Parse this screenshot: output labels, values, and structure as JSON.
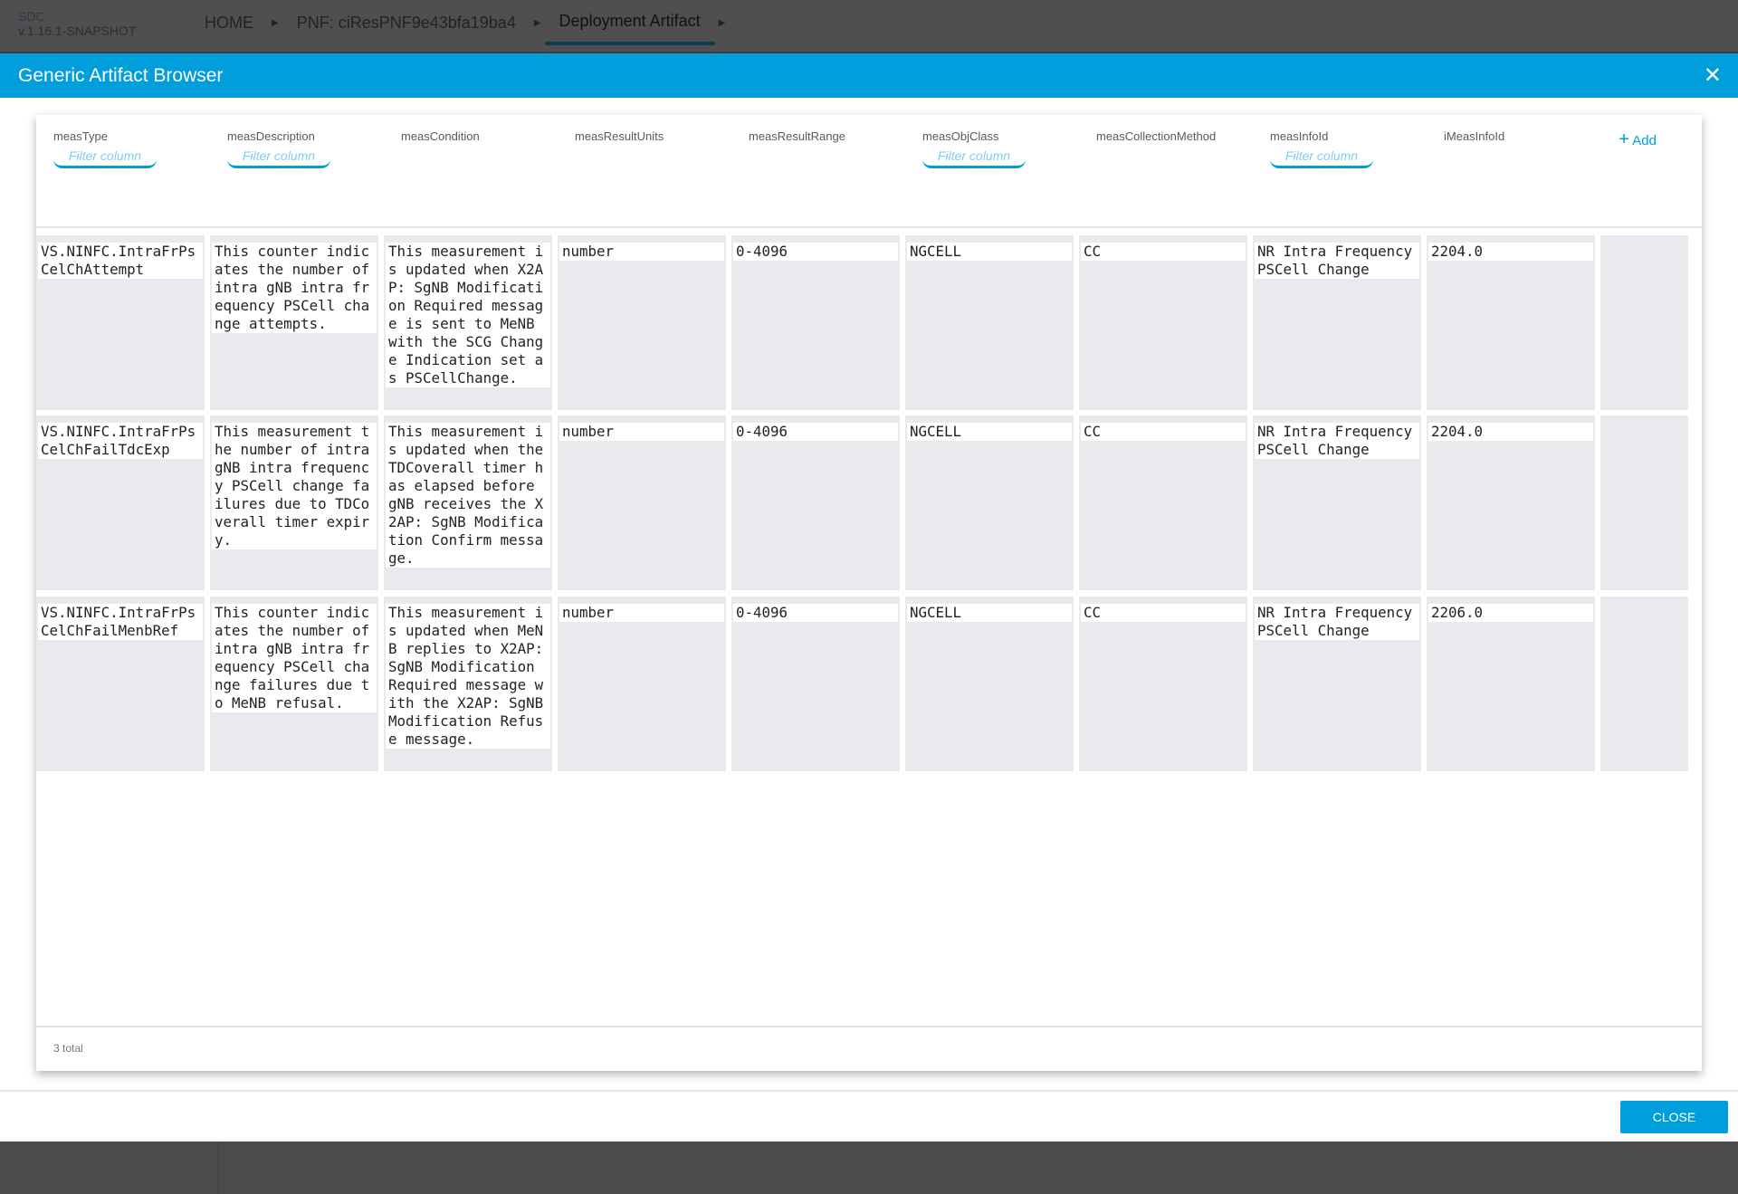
{
  "app": {
    "name": "SDC",
    "version": "v.1.16.1-SNAPSHOT"
  },
  "breadcrumbs": [
    {
      "label": "HOME"
    },
    {
      "label": "PNF: ciResPNF9e43bfa19ba4"
    },
    {
      "label": "Deployment Artifact",
      "active": true
    }
  ],
  "modal": {
    "title": "Generic Artifact Browser",
    "close_label": "CLOSE",
    "add_label": "Add",
    "total": "3 total",
    "filter_placeholder": "Filter column"
  },
  "colors": {
    "accent": "#009fdb"
  },
  "columns": [
    {
      "label": "measType",
      "filter": true
    },
    {
      "label": "measDescription",
      "filter": true
    },
    {
      "label": "measCondition",
      "filter": false
    },
    {
      "label": "measResultUnits",
      "filter": false
    },
    {
      "label": "measResultRange",
      "filter": false
    },
    {
      "label": "measObjClass",
      "filter": true
    },
    {
      "label": "measCollectionMethod",
      "filter": false
    },
    {
      "label": "measInfoId",
      "filter": true
    },
    {
      "label": "iMeasInfoId",
      "filter": false
    }
  ],
  "rows": [
    [
      "VS.NINFC.IntraFrPsCelChAttempt",
      "This counter indicates the number of intra gNB intra frequency PSCell change attempts.",
      "This measurement is updated when X2AP: SgNB Modification Required message is sent to MeNB with the SCG Change Indication set as PSCellChange.",
      "number",
      "0-4096",
      "NGCELL",
      "CC",
      "NR Intra Frequency PSCell Change",
      "2204.0"
    ],
    [
      "VS.NINFC.IntraFrPsCelChFailTdcExp",
      "This measurement the number of intra gNB intra frequency PSCell change failures due to TDCoverall timer expiry.",
      "This measurement is updated when the TDCoverall timer has elapsed before gNB receives the X2AP: SgNB Modification Confirm message.",
      "number",
      "0-4096",
      "NGCELL",
      "CC",
      "NR Intra Frequency PSCell Change",
      "2204.0"
    ],
    [
      "VS.NINFC.IntraFrPsCelChFailMenbRef",
      "This counter indicates the number of intra gNB intra frequency PSCell change failures due to MeNB refusal.",
      "This measurement is updated when MeNB replies to X2AP: SgNB Modification Required message with the X2AP: SgNB Modification Refuse message.",
      "number",
      "0-4096",
      "NGCELL",
      "CC",
      "NR Intra Frequency PSCell Change",
      "2206.0"
    ]
  ]
}
